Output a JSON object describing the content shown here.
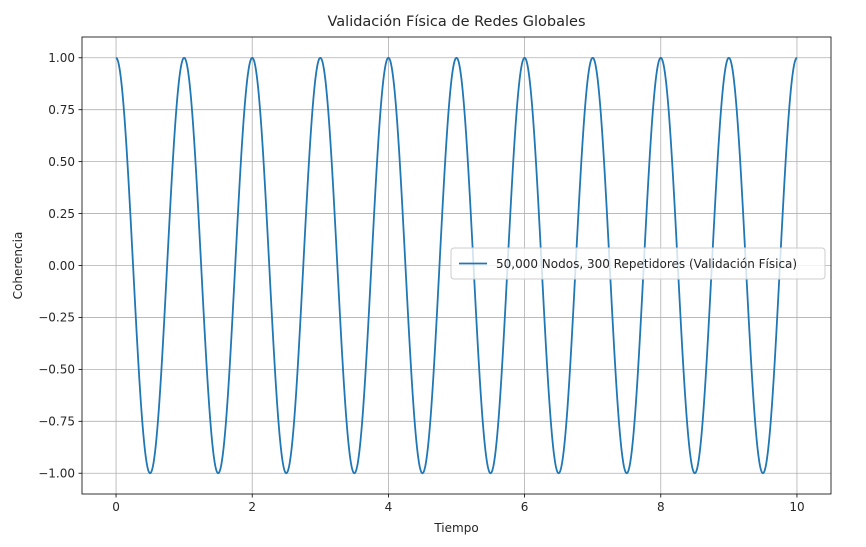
{
  "chart_data": {
    "type": "line",
    "title": "Validación Física de Redes Globales",
    "xlabel": "Tiempo",
    "ylabel": "Coherencia",
    "xlim": [
      -0.5,
      10.5
    ],
    "ylim": [
      -1.1,
      1.1
    ],
    "xticks": [
      0,
      2,
      4,
      6,
      8,
      10
    ],
    "xtick_labels": [
      "0",
      "2",
      "4",
      "6",
      "8",
      "10"
    ],
    "yticks": [
      1.0,
      0.75,
      0.5,
      0.25,
      0.0,
      -0.25,
      -0.5,
      -0.75,
      -1.0
    ],
    "ytick_labels": [
      "1.00",
      "0.75",
      "0.50",
      "0.25",
      "0.00",
      "−0.25",
      "−0.50",
      "−0.75",
      "−1.00"
    ],
    "grid": true,
    "legend_position": "center-right",
    "series": [
      {
        "name": "50,000 Nodos, 300 Repetidores (Validación Física)",
        "color": "#1f77b4",
        "function": "cos(2*pi*t)",
        "x": [
          0,
          0.25,
          0.5,
          0.75,
          1,
          1.25,
          1.5,
          1.75,
          2,
          2.25,
          2.5,
          2.75,
          3,
          3.25,
          3.5,
          3.75,
          4,
          4.25,
          4.5,
          4.75,
          5,
          5.25,
          5.5,
          5.75,
          6,
          6.25,
          6.5,
          6.75,
          7,
          7.25,
          7.5,
          7.75,
          8,
          8.25,
          8.5,
          8.75,
          9,
          9.25,
          9.5,
          9.75,
          10
        ],
        "y": [
          1,
          0,
          -1,
          0,
          1,
          0,
          -1,
          0,
          1,
          0,
          -1,
          0,
          1,
          0,
          -1,
          0,
          1,
          0,
          -1,
          0,
          1,
          0,
          -1,
          0,
          1,
          0,
          -1,
          0,
          1,
          0,
          -1,
          0,
          1,
          0,
          -1,
          0,
          1,
          0,
          -1,
          0,
          1
        ]
      }
    ]
  }
}
